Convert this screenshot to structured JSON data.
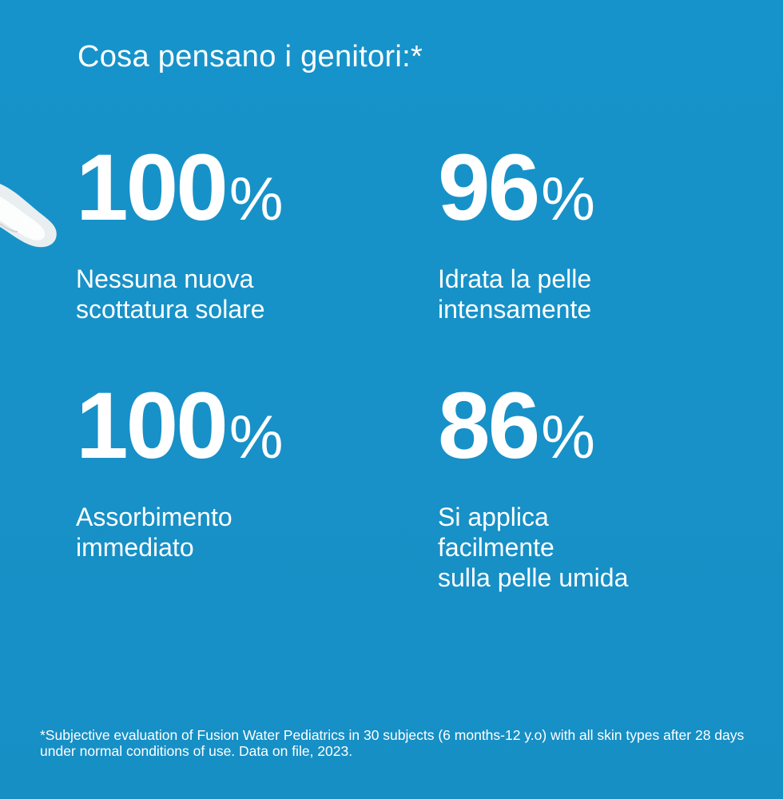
{
  "title": "Cosa pensano i genitori:*",
  "stats": [
    {
      "value": "100",
      "unit": "%",
      "description": "Nessuna nuova\nscottatura solare"
    },
    {
      "value": "96",
      "unit": "%",
      "description": "Idrata la pelle\nintensamente"
    },
    {
      "value": "100",
      "unit": "%",
      "description": "Assorbimento\nimmediato"
    },
    {
      "value": "86",
      "unit": "%",
      "description": "Si applica\nfacilmente\nsulla pelle umida"
    }
  ],
  "footnote": "*Subjective evaluation of Fusion Water Pediatrics in 30 subjects (6 months-12 y.o) with all skin types after 28 days under normal conditions of use. Data on file, 2023.",
  "colors": {
    "background": "#1793c9",
    "text": "#ffffff"
  }
}
